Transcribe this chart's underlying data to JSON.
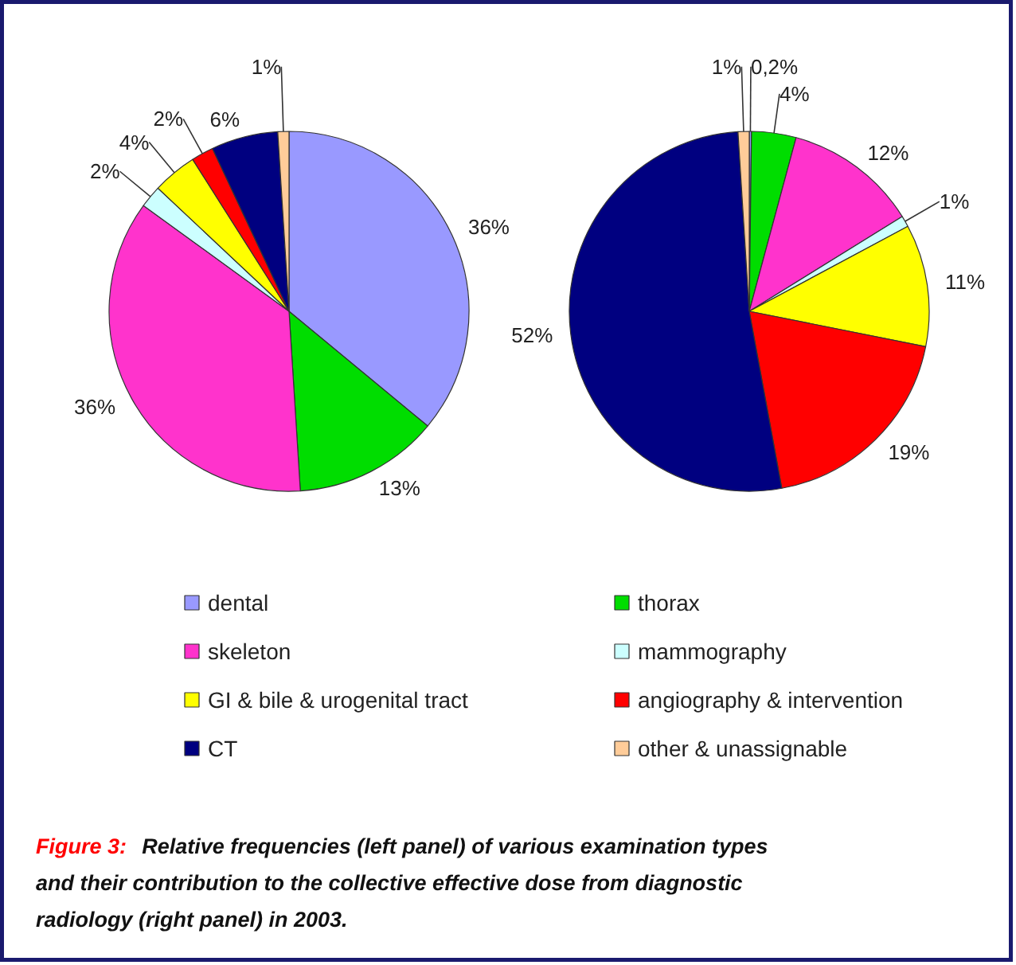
{
  "chart_data": [
    {
      "type": "pie",
      "categories": [
        "dental",
        "thorax",
        "skeleton",
        "mammography",
        "GI & bile & urogenital tract",
        "angiography & intervention",
        "CT",
        "other & unassignable"
      ],
      "values": [
        36,
        13,
        36,
        2,
        4,
        2,
        6,
        1
      ],
      "value_labels": [
        "36%",
        "13%",
        "36%",
        "2%",
        "4%",
        "2%",
        "6%",
        "1%"
      ],
      "colors": [
        "#9999ff",
        "#00dd00",
        "#ff33cc",
        "#ccffff",
        "#ffff00",
        "#ff0000",
        "#000080",
        "#ffcc99"
      ],
      "legend": "bottom",
      "annotations": [
        "Figure 3: Relative frequencies (left panel) of various examination types and their contribution to the collective effective dose from diagnostic radiology (right panel) in 2003."
      ]
    },
    {
      "type": "pie",
      "values": [
        0.2,
        4,
        12,
        1,
        11,
        19,
        52,
        1
      ],
      "value_labels": [
        "0,2%",
        "4%",
        "12%",
        "1%",
        "11%",
        "19%",
        "52%",
        "1%"
      ],
      "colors": [
        "#9999ff",
        "#00dd00",
        "#ff33cc",
        "#ccffff",
        "#ffff00",
        "#ff0000",
        "#000080",
        "#ffcc99"
      ]
    }
  ]
}
